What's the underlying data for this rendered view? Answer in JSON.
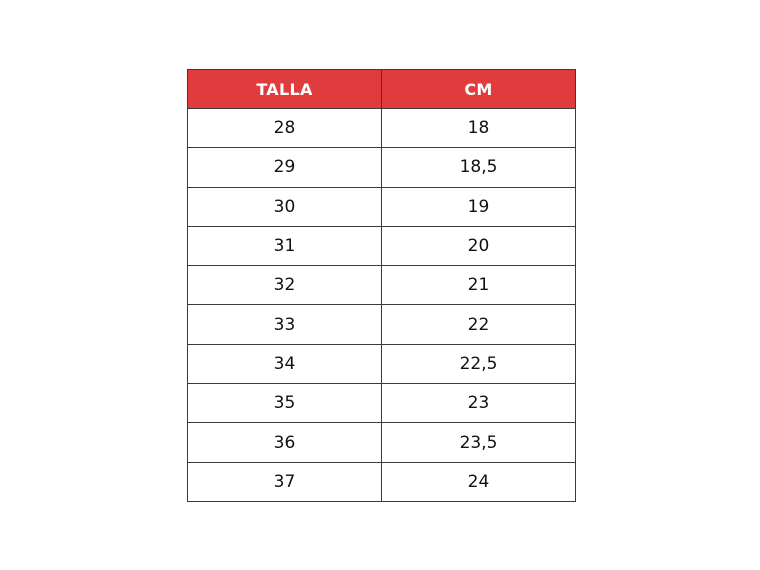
{
  "table": {
    "header_color": "#e03c3e",
    "headers": [
      "TALLA",
      "CM"
    ],
    "rows": [
      [
        "28",
        "18"
      ],
      [
        "29",
        "18,5"
      ],
      [
        "30",
        "19"
      ],
      [
        "31",
        "20"
      ],
      [
        "32",
        "21"
      ],
      [
        "33",
        "22"
      ],
      [
        "34",
        "22,5"
      ],
      [
        "35",
        "23"
      ],
      [
        "36",
        "23,5"
      ],
      [
        "37",
        "24"
      ]
    ]
  }
}
